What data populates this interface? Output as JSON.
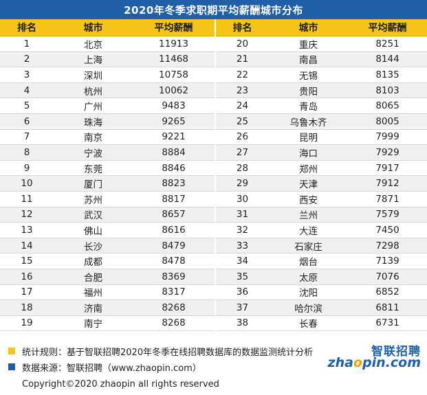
{
  "title": "2020年冬季求职期平均薪酬城市分布",
  "headers": [
    "排名",
    "城市",
    "平均薪酬",
    "排名",
    "城市",
    "平均薪酬"
  ],
  "colors": {
    "title_bg": "#1f5fa8",
    "header_bg": "#f5c518",
    "note_yellow": "#f5c518",
    "note_blue": "#1f5fa8"
  },
  "chart_data": {
    "type": "table",
    "title": "2020年冬季求职期平均薪酬城市分布",
    "columns": [
      "排名",
      "城市",
      "平均薪酬"
    ],
    "rows": [
      {
        "rank": 1,
        "city": "北京",
        "salary": 11913
      },
      {
        "rank": 2,
        "city": "上海",
        "salary": 11468
      },
      {
        "rank": 3,
        "city": "深圳",
        "salary": 10758
      },
      {
        "rank": 4,
        "city": "杭州",
        "salary": 10062
      },
      {
        "rank": 5,
        "city": "广州",
        "salary": 9483
      },
      {
        "rank": 6,
        "city": "珠海",
        "salary": 9265
      },
      {
        "rank": 7,
        "city": "南京",
        "salary": 9221
      },
      {
        "rank": 8,
        "city": "宁波",
        "salary": 8884
      },
      {
        "rank": 9,
        "city": "东莞",
        "salary": 8846
      },
      {
        "rank": 10,
        "city": "厦门",
        "salary": 8823
      },
      {
        "rank": 11,
        "city": "苏州",
        "salary": 8817
      },
      {
        "rank": 12,
        "city": "武汉",
        "salary": 8657
      },
      {
        "rank": 13,
        "city": "佛山",
        "salary": 8616
      },
      {
        "rank": 14,
        "city": "长沙",
        "salary": 8479
      },
      {
        "rank": 15,
        "city": "成都",
        "salary": 8478
      },
      {
        "rank": 16,
        "city": "合肥",
        "salary": 8369
      },
      {
        "rank": 17,
        "city": "福州",
        "salary": 8317
      },
      {
        "rank": 18,
        "city": "济南",
        "salary": 8268
      },
      {
        "rank": 19,
        "city": "南宁",
        "salary": 8268
      },
      {
        "rank": 20,
        "city": "重庆",
        "salary": 8251
      },
      {
        "rank": 21,
        "city": "南昌",
        "salary": 8144
      },
      {
        "rank": 22,
        "city": "无锡",
        "salary": 8135
      },
      {
        "rank": 23,
        "city": "贵阳",
        "salary": 8103
      },
      {
        "rank": 24,
        "city": "青岛",
        "salary": 8065
      },
      {
        "rank": 25,
        "city": "乌鲁木齐",
        "salary": 8005
      },
      {
        "rank": 26,
        "city": "昆明",
        "salary": 7999
      },
      {
        "rank": 27,
        "city": "海口",
        "salary": 7929
      },
      {
        "rank": 28,
        "city": "郑州",
        "salary": 7917
      },
      {
        "rank": 29,
        "city": "天津",
        "salary": 7912
      },
      {
        "rank": 30,
        "city": "西安",
        "salary": 7871
      },
      {
        "rank": 31,
        "city": "兰州",
        "salary": 7579
      },
      {
        "rank": 32,
        "city": "大连",
        "salary": 7450
      },
      {
        "rank": 33,
        "city": "石家庄",
        "salary": 7298
      },
      {
        "rank": 34,
        "city": "烟台",
        "salary": 7139
      },
      {
        "rank": 35,
        "city": "太原",
        "salary": 7076
      },
      {
        "rank": 36,
        "city": "沈阳",
        "salary": 6852
      },
      {
        "rank": 37,
        "city": "哈尔滨",
        "salary": 6811
      },
      {
        "rank": 38,
        "city": "长春",
        "salary": 6731
      }
    ]
  },
  "notes": {
    "rule": "统计规则：基于智联招聘2020年冬季在线招聘数据库的数据监测统计分析",
    "source": "数据来源：智联招聘（www.zhaopin.com）"
  },
  "copyright": "Copyright©2020 zhaopin all rights reserved",
  "logo": {
    "cn": "智联招聘",
    "en_left": "zha",
    "en_mid": "o",
    "en_right": "pin.com"
  }
}
